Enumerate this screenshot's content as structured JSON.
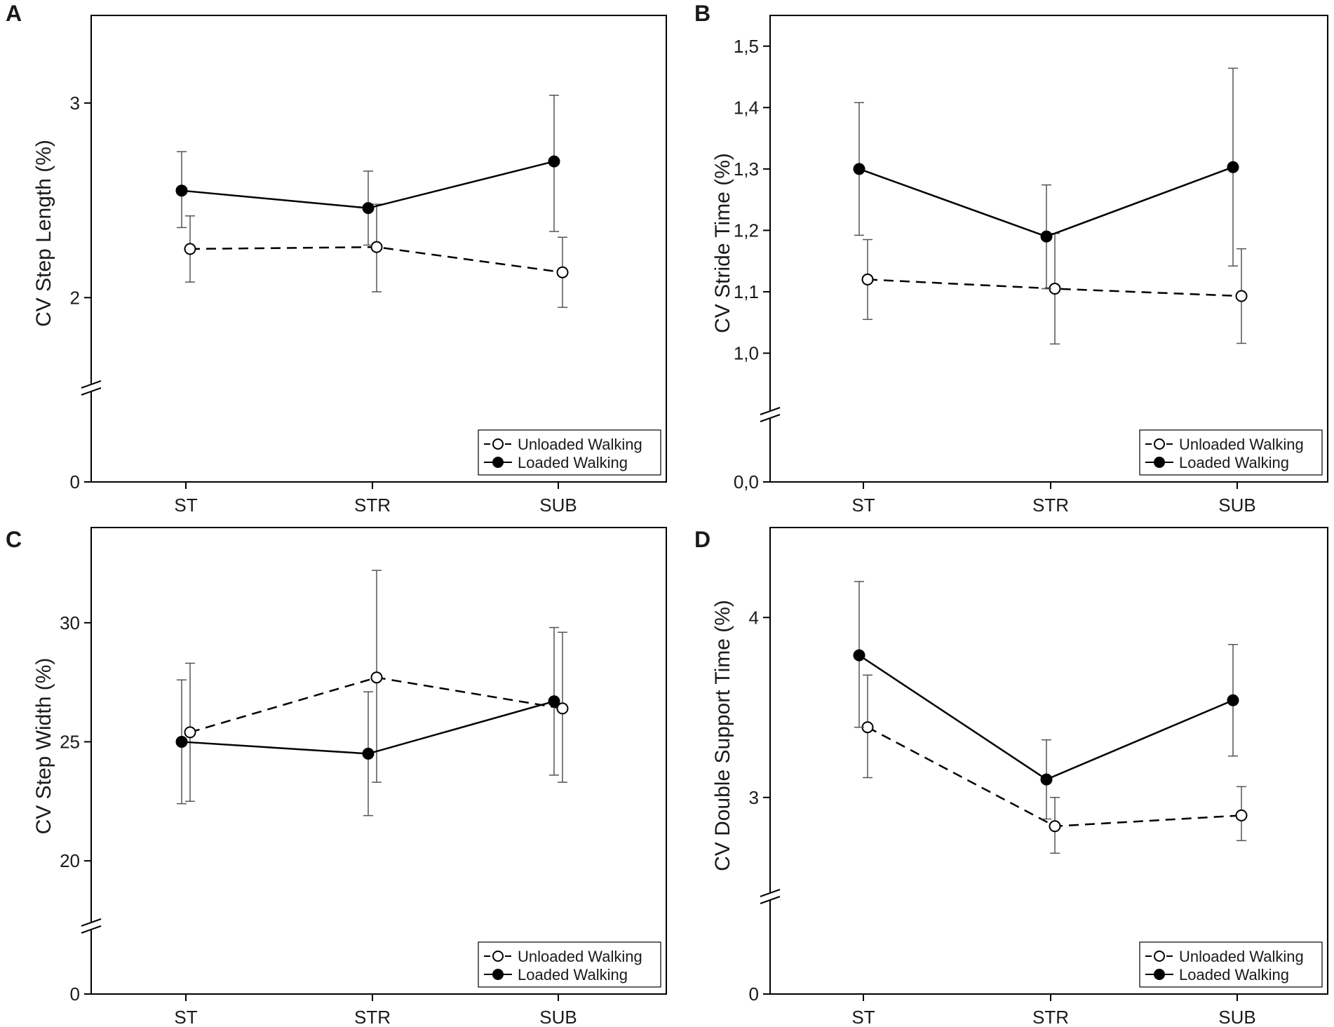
{
  "figure": {
    "legend": {
      "unloaded": "Unloaded Walking",
      "loaded": "Loaded Walking"
    },
    "colors": {
      "axis": "#000000",
      "error_bar": "#555555",
      "series": "#000000",
      "open_fill": "#ffffff"
    }
  },
  "chart_data": [
    {
      "panel": "A",
      "type": "line",
      "title": "",
      "xlabel": "",
      "ylabel": "CV Step Length (%)",
      "categories": [
        "ST",
        "STR",
        "SUB"
      ],
      "broken_axis": true,
      "yticks": [
        {
          "value": 0,
          "label": "0"
        },
        {
          "value": 2,
          "label": "2"
        },
        {
          "value": 3,
          "label": "3"
        }
      ],
      "ylim_upper": [
        1.5,
        3.45
      ],
      "legend_position": "bottom-right",
      "series": [
        {
          "name": "Unloaded Walking",
          "style": "dashed",
          "marker": "open-circle",
          "values": [
            2.25,
            2.26,
            2.13
          ],
          "err_low": [
            2.08,
            2.03,
            1.95
          ],
          "err_high": [
            2.42,
            2.48,
            2.31
          ]
        },
        {
          "name": "Loaded Walking",
          "style": "solid",
          "marker": "filled-circle",
          "values": [
            2.55,
            2.46,
            2.7
          ],
          "err_low": [
            2.36,
            2.27,
            2.34
          ],
          "err_high": [
            2.75,
            2.65,
            3.04
          ]
        }
      ]
    },
    {
      "panel": "B",
      "type": "line",
      "title": "",
      "xlabel": "",
      "ylabel": "CV Stride Time (%)",
      "categories": [
        "ST",
        "STR",
        "SUB"
      ],
      "broken_axis": true,
      "yticks": [
        {
          "value": 0,
          "label": "0,0"
        },
        {
          "value": 1.0,
          "label": "1,0"
        },
        {
          "value": 1.1,
          "label": "1,1"
        },
        {
          "value": 1.2,
          "label": "1,2"
        },
        {
          "value": 1.3,
          "label": "1,3"
        },
        {
          "value": 1.4,
          "label": "1,4"
        },
        {
          "value": 1.5,
          "label": "1,5"
        }
      ],
      "ylim_upper": [
        0.9,
        1.55
      ],
      "legend_position": "bottom-right",
      "series": [
        {
          "name": "Unloaded Walking",
          "style": "dashed",
          "marker": "open-circle",
          "values": [
            1.12,
            1.105,
            1.093
          ],
          "err_low": [
            1.055,
            1.015,
            1.016
          ],
          "err_high": [
            1.185,
            1.195,
            1.17
          ]
        },
        {
          "name": "Loaded Walking",
          "style": "solid",
          "marker": "filled-circle",
          "values": [
            1.3,
            1.19,
            1.303
          ],
          "err_low": [
            1.192,
            1.105,
            1.142
          ],
          "err_high": [
            1.408,
            1.274,
            1.464
          ]
        }
      ]
    },
    {
      "panel": "C",
      "type": "line",
      "title": "",
      "xlabel": "",
      "ylabel": "CV Step Width (%)",
      "categories": [
        "ST",
        "STR",
        "SUB"
      ],
      "broken_axis": true,
      "yticks": [
        {
          "value": 0,
          "label": "0"
        },
        {
          "value": 20,
          "label": "20"
        },
        {
          "value": 25,
          "label": "25"
        },
        {
          "value": 30,
          "label": "30"
        }
      ],
      "ylim_upper": [
        18.0,
        34.0
      ],
      "legend_position": "bottom-right",
      "series": [
        {
          "name": "Unloaded Walking",
          "style": "dashed",
          "marker": "open-circle",
          "values": [
            25.4,
            27.7,
            26.4
          ],
          "err_low": [
            22.5,
            23.3,
            23.3
          ],
          "err_high": [
            28.3,
            32.2,
            29.6
          ]
        },
        {
          "name": "Loaded Walking",
          "style": "solid",
          "marker": "filled-circle",
          "values": [
            25.0,
            24.5,
            26.7
          ],
          "err_low": [
            22.4,
            21.9,
            23.6
          ],
          "err_high": [
            27.6,
            27.1,
            29.8
          ]
        }
      ]
    },
    {
      "panel": "D",
      "type": "line",
      "title": "",
      "xlabel": "",
      "ylabel": "CV Double Support Time (%)",
      "categories": [
        "ST",
        "STR",
        "SUB"
      ],
      "broken_axis": true,
      "yticks": [
        {
          "value": 0,
          "label": "0"
        },
        {
          "value": 3,
          "label": "3"
        },
        {
          "value": 4,
          "label": "4"
        }
      ],
      "ylim_upper": [
        2.5,
        4.5
      ],
      "legend_position": "bottom-right",
      "series": [
        {
          "name": "Unloaded Walking",
          "style": "dashed",
          "marker": "open-circle",
          "values": [
            3.39,
            2.84,
            2.9
          ],
          "err_low": [
            3.11,
            2.69,
            2.76
          ],
          "err_high": [
            3.68,
            3.0,
            3.06
          ]
        },
        {
          "name": "Loaded Walking",
          "style": "solid",
          "marker": "filled-circle",
          "values": [
            3.79,
            3.1,
            3.54
          ],
          "err_low": [
            3.39,
            2.88,
            3.23
          ],
          "err_high": [
            4.2,
            3.32,
            3.85
          ]
        }
      ]
    }
  ]
}
